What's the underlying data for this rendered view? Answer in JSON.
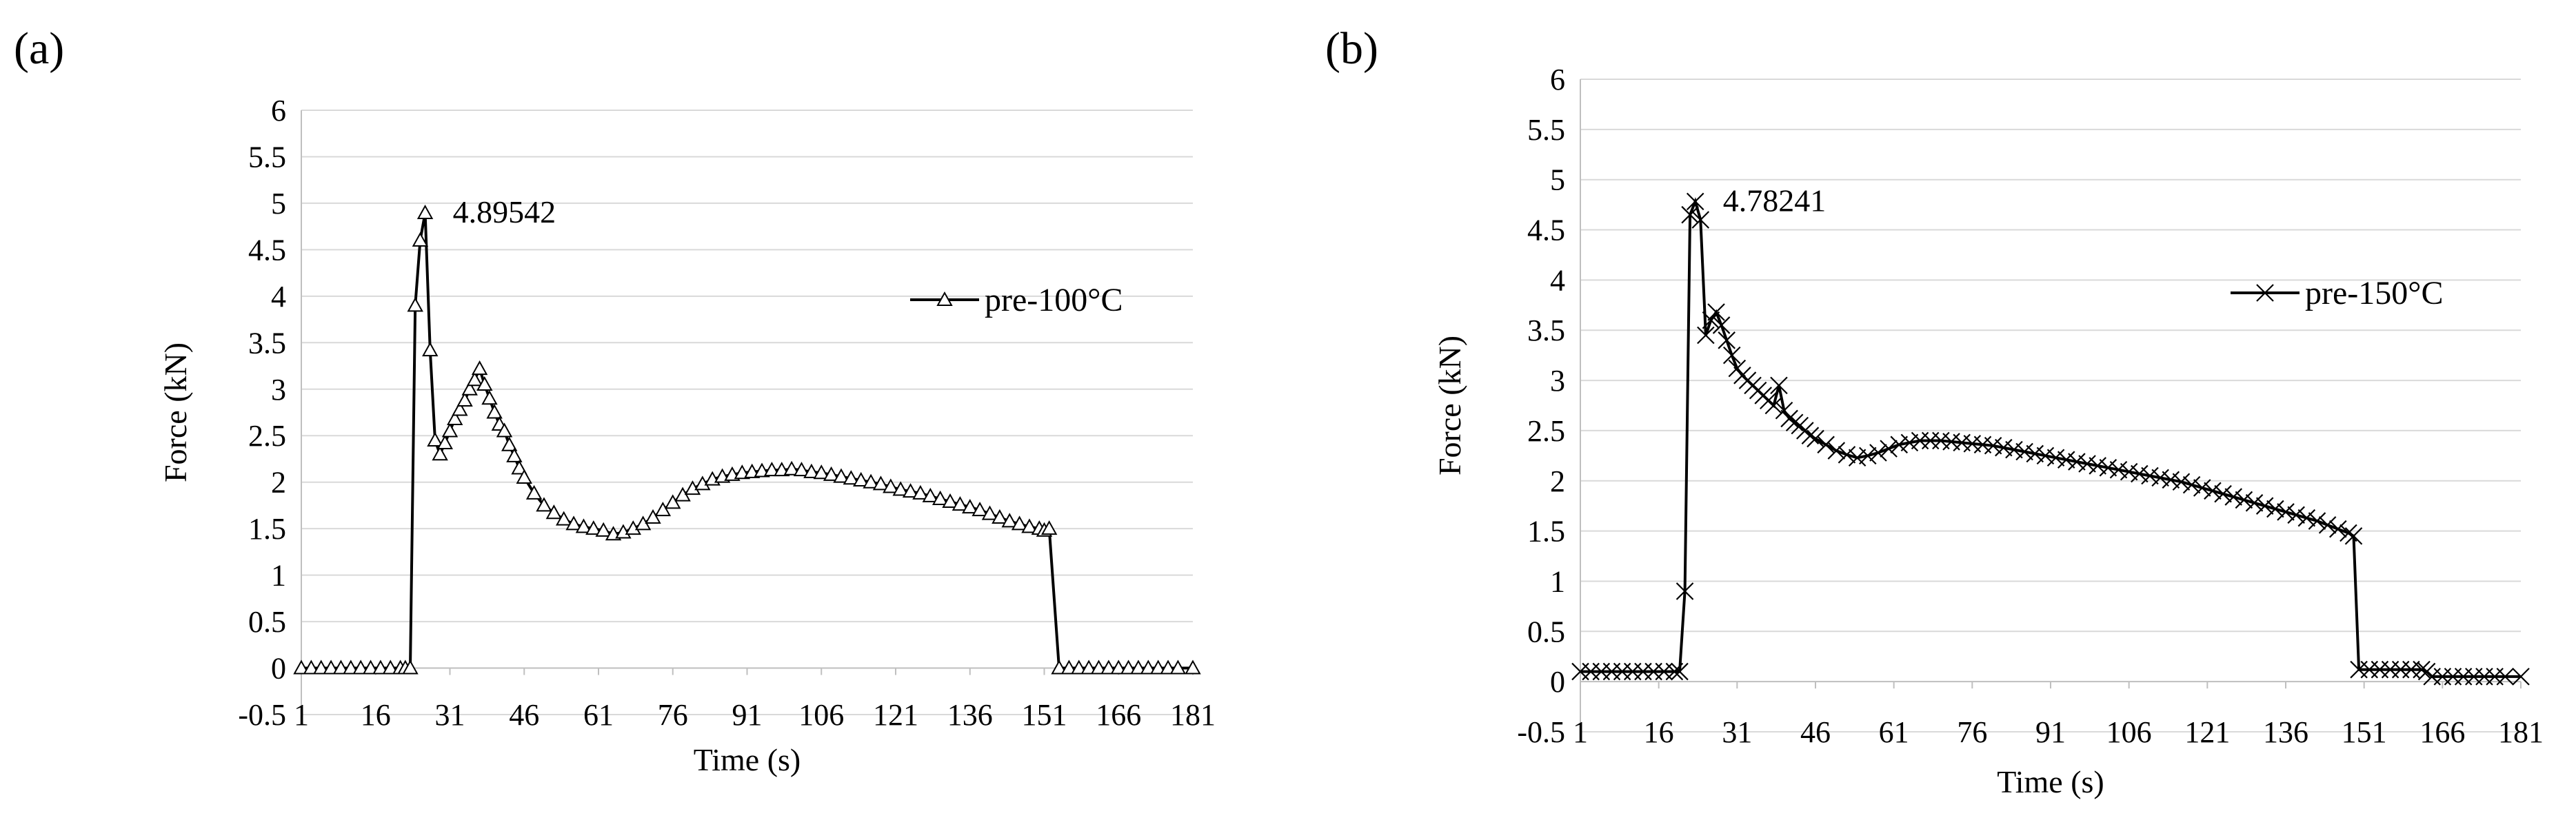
{
  "chart_data": [
    {
      "panel": "(a)",
      "type": "line",
      "xlabel": "Time (s)",
      "ylabel": "Force (kN)",
      "ylim": [
        -0.5,
        6
      ],
      "xlim": [
        1,
        181
      ],
      "y_ticks": [
        "-0.5",
        "0",
        "0.5",
        "1",
        "1.5",
        "2",
        "2.5",
        "3",
        "3.5",
        "4",
        "4.5",
        "5",
        "5.5",
        "6"
      ],
      "x_ticks": [
        "1",
        "16",
        "31",
        "46",
        "61",
        "76",
        "91",
        "106",
        "121",
        "136",
        "151",
        "166",
        "181"
      ],
      "grid": true,
      "legend": "pre-100°C",
      "marker": "triangle",
      "peak_label": "4.89542",
      "peak": [
        26,
        4.89542
      ],
      "series": [
        {
          "name": "pre-100°C",
          "x": [
            1,
            3,
            5,
            7,
            9,
            11,
            13,
            15,
            17,
            19,
            21,
            22,
            23,
            24,
            25,
            26,
            27,
            28,
            29,
            30,
            31,
            32,
            33,
            34,
            35,
            36,
            37,
            38,
            39,
            40,
            41,
            42,
            43,
            44,
            45,
            46,
            48,
            50,
            52,
            54,
            56,
            58,
            60,
            62,
            64,
            66,
            68,
            70,
            72,
            74,
            76,
            78,
            80,
            82,
            84,
            86,
            88,
            90,
            92,
            94,
            96,
            98,
            100,
            102,
            104,
            106,
            108,
            110,
            112,
            114,
            116,
            118,
            120,
            122,
            124,
            126,
            128,
            130,
            132,
            134,
            136,
            138,
            140,
            142,
            144,
            146,
            148,
            150,
            151,
            152,
            154,
            156,
            158,
            160,
            162,
            164,
            166,
            168,
            170,
            172,
            174,
            176,
            178,
            181
          ],
          "y": [
            0,
            0,
            0,
            0,
            0,
            0,
            0,
            0,
            0,
            0,
            0,
            0,
            0,
            3.9,
            4.6,
            4.89542,
            3.42,
            2.45,
            2.3,
            2.42,
            2.55,
            2.68,
            2.78,
            2.88,
            3.0,
            3.1,
            3.22,
            3.05,
            2.9,
            2.75,
            2.62,
            2.55,
            2.4,
            2.28,
            2.15,
            2.05,
            1.88,
            1.75,
            1.67,
            1.6,
            1.55,
            1.52,
            1.5,
            1.48,
            1.44,
            1.46,
            1.5,
            1.55,
            1.62,
            1.7,
            1.78,
            1.86,
            1.93,
            1.98,
            2.03,
            2.06,
            2.08,
            2.1,
            2.11,
            2.12,
            2.13,
            2.13,
            2.14,
            2.13,
            2.11,
            2.1,
            2.08,
            2.06,
            2.04,
            2.02,
            2.0,
            1.98,
            1.95,
            1.92,
            1.9,
            1.88,
            1.85,
            1.82,
            1.79,
            1.76,
            1.73,
            1.7,
            1.66,
            1.62,
            1.58,
            1.55,
            1.52,
            1.5,
            1.48,
            1.5,
            0,
            0,
            0,
            0,
            0,
            0,
            0,
            0,
            0,
            0,
            0,
            0,
            0,
            0
          ]
        }
      ]
    },
    {
      "panel": "(b)",
      "type": "line",
      "xlabel": "Time (s)",
      "ylabel": "Force (kN)",
      "ylim": [
        -0.5,
        6
      ],
      "xlim": [
        1,
        181
      ],
      "y_ticks": [
        "-0.5",
        "0",
        "0.5",
        "1",
        "1.5",
        "2",
        "2.5",
        "3",
        "3.5",
        "4",
        "4.5",
        "5",
        "5.5",
        "6"
      ],
      "x_ticks": [
        "1",
        "16",
        "31",
        "46",
        "61",
        "76",
        "91",
        "106",
        "121",
        "136",
        "151",
        "166",
        "181"
      ],
      "grid": true,
      "legend": "pre-150°C",
      "marker": "x",
      "peak_label": "4.78241",
      "peak": [
        23,
        4.78241
      ],
      "series": [
        {
          "name": "pre-150°C",
          "x": [
            1,
            3,
            5,
            7,
            9,
            11,
            13,
            15,
            17,
            19,
            20,
            21,
            22,
            23,
            24,
            25,
            26,
            27,
            28,
            29,
            30,
            31,
            32,
            33,
            34,
            35,
            36,
            37,
            38,
            39,
            40,
            41,
            42,
            43,
            44,
            45,
            46,
            48,
            50,
            52,
            54,
            56,
            58,
            60,
            62,
            64,
            66,
            68,
            70,
            72,
            74,
            76,
            78,
            80,
            82,
            84,
            86,
            88,
            90,
            92,
            94,
            96,
            98,
            100,
            102,
            104,
            106,
            108,
            110,
            112,
            114,
            116,
            118,
            120,
            122,
            124,
            126,
            128,
            130,
            132,
            134,
            136,
            138,
            140,
            142,
            144,
            146,
            148,
            149,
            150,
            152,
            154,
            156,
            158,
            160,
            162,
            163,
            164,
            166,
            168,
            170,
            172,
            174,
            176,
            178,
            181
          ],
          "y": [
            0.1,
            0.1,
            0.1,
            0.1,
            0.1,
            0.1,
            0.1,
            0.1,
            0.1,
            0.1,
            0.1,
            0.9,
            4.65,
            4.78241,
            4.6,
            3.45,
            3.6,
            3.68,
            3.55,
            3.4,
            3.25,
            3.12,
            3.05,
            3.0,
            2.95,
            2.9,
            2.85,
            2.8,
            2.75,
            2.95,
            2.7,
            2.62,
            2.58,
            2.55,
            2.5,
            2.45,
            2.42,
            2.36,
            2.3,
            2.26,
            2.23,
            2.25,
            2.28,
            2.32,
            2.36,
            2.38,
            2.4,
            2.4,
            2.4,
            2.39,
            2.38,
            2.37,
            2.36,
            2.35,
            2.33,
            2.31,
            2.29,
            2.27,
            2.25,
            2.23,
            2.21,
            2.19,
            2.17,
            2.15,
            2.13,
            2.11,
            2.09,
            2.07,
            2.05,
            2.03,
            2.01,
            1.99,
            1.96,
            1.93,
            1.9,
            1.87,
            1.84,
            1.81,
            1.78,
            1.75,
            1.72,
            1.69,
            1.66,
            1.63,
            1.6,
            1.56,
            1.52,
            1.48,
            1.45,
            0.12,
            0.12,
            0.12,
            0.12,
            0.12,
            0.12,
            0.12,
            0.1,
            0.05,
            0.05,
            0.05,
            0.05,
            0.05,
            0.05,
            0.05,
            0.05,
            0.05
          ]
        }
      ]
    }
  ]
}
